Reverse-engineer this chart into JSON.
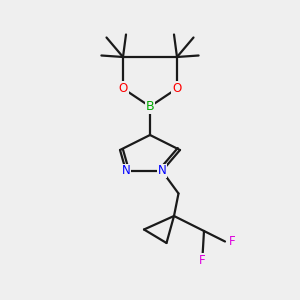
{
  "bg_color": "#efefef",
  "bond_color": "#1a1a1a",
  "O_color": "#ff0000",
  "B_color": "#00aa00",
  "N_color": "#0000ff",
  "F_color": "#dd00dd",
  "line_width": 1.6,
  "figsize": [
    3.0,
    3.0
  ],
  "dpi": 100,
  "xlim": [
    0,
    10
  ],
  "ylim": [
    0,
    10
  ]
}
